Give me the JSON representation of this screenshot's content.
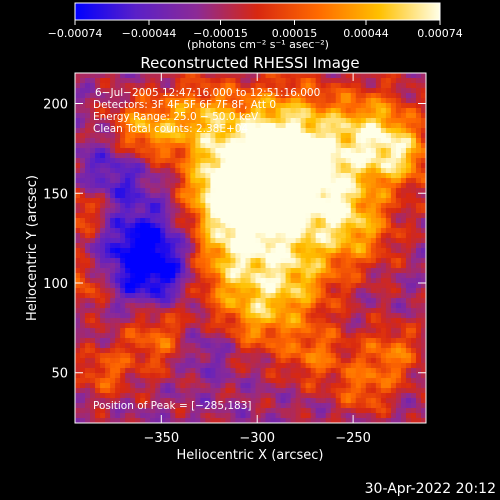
{
  "chart_data": {
    "type": "heatmap",
    "title": "Reconstructed RHESSI Image",
    "xlabel": "Heliocentric X (arcsec)",
    "ylabel": "Heliocentric Y (arcsec)",
    "xlim": [
      -395,
      -212
    ],
    "ylim": [
      22,
      217
    ],
    "xticks": [
      -350,
      -300,
      -250
    ],
    "xtick_labels": [
      "−350",
      "−300",
      "−250"
    ],
    "yticks": [
      50,
      100,
      150,
      200
    ],
    "ytick_labels": [
      "50",
      "100",
      "150",
      "200"
    ],
    "colorbar": {
      "min": -0.00074,
      "max": 0.00074,
      "tick_values": [
        -0.00074,
        -0.00044,
        -0.00015,
        0.00015,
        0.00044,
        0.00074
      ],
      "tick_labels": [
        "−0.00074",
        "−0.00044",
        "−0.00015",
        "0.00015",
        "0.00044",
        "0.00074"
      ],
      "unit_label": "(photons cm⁻² s⁻¹ asec⁻²)",
      "colormap": [
        "#0000ff",
        "#5a20c8",
        "#8c2a96",
        "#d82810",
        "#ff6a00",
        "#ffc000",
        "#ffffe8"
      ]
    },
    "annotations": [
      "6−Jul−2005 12:47:16.000 to 12:51:16.000",
      "Detectors: 3F 4F 5F 6F 7F 8F, Att 0",
      "Energy Range: 25.0 − 50.0 keV",
      "Clean      Total counts: 2.38E+04",
      "Position of Peak = [−285,183]"
    ],
    "peak_position": [
      -285,
      183
    ],
    "total_counts": 23800
  },
  "footer": {
    "date": "30-Apr-2022 20:12"
  }
}
